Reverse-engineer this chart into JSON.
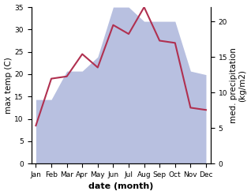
{
  "months": [
    "Jan",
    "Feb",
    "Mar",
    "Apr",
    "May",
    "Jun",
    "Jul",
    "Aug",
    "Sep",
    "Oct",
    "Nov",
    "Dec"
  ],
  "temp_max": [
    8.5,
    19.0,
    19.5,
    24.5,
    21.5,
    31.0,
    29.0,
    35.0,
    27.5,
    27.0,
    12.5,
    12.0
  ],
  "precip": [
    9.0,
    9.0,
    13.0,
    13.0,
    15.0,
    22.0,
    22.0,
    20.0,
    20.0,
    20.0,
    13.0,
    12.5
  ],
  "temp_ylim": [
    0,
    35
  ],
  "precip_ylim": [
    0,
    22
  ],
  "temp_color": "#b03050",
  "precip_fill_color": "#b8c0e0",
  "xlabel": "date (month)",
  "ylabel_left": "max temp (C)",
  "ylabel_right": "med. precipitation\n(kg/m2)",
  "background_color": "#ffffff",
  "temp_linewidth": 1.5,
  "tick_fontsize": 6.5,
  "label_fontsize": 7.5,
  "xlabel_fontsize": 8,
  "right_yticks": [
    0,
    5,
    10,
    15,
    20
  ],
  "left_yticks": [
    0,
    5,
    10,
    15,
    20,
    25,
    30,
    35
  ]
}
